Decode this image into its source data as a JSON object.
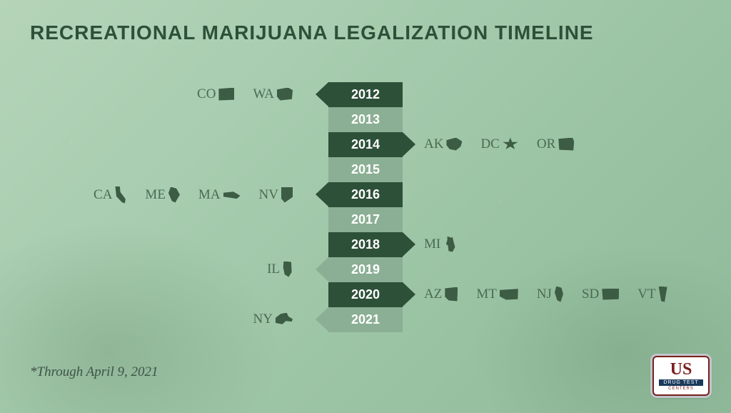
{
  "title": {
    "text": "RECREATIONAL MARIJUANA LEGALIZATION TIMELINE",
    "fontsize": 28
  },
  "footnote": {
    "text": "*Through April 9, 2021",
    "fontsize": 19
  },
  "logo": {
    "us": "US",
    "band": "DRUG TEST",
    "sub": "CENTERS"
  },
  "timeline": {
    "block_height": 35,
    "year_fontsize": 18,
    "colors": {
      "dark": "#2d5039",
      "light": "#8baf94",
      "text": "#ffffff",
      "state_text": "#4a6b52",
      "state_fill": "#3d5c44",
      "state_outline": "#ffffff"
    },
    "years": [
      {
        "year": "2012",
        "shade": "dark",
        "side": "left",
        "states": [
          {
            "abbr": "CO",
            "shape": "shape-co"
          },
          {
            "abbr": "WA",
            "shape": "shape-wa"
          }
        ]
      },
      {
        "year": "2013",
        "shade": "light",
        "side": "none",
        "states": []
      },
      {
        "year": "2014",
        "shade": "dark",
        "side": "right",
        "states": [
          {
            "abbr": "AK",
            "shape": "shape-ak"
          },
          {
            "abbr": "DC",
            "shape": "shape-dc"
          },
          {
            "abbr": "OR",
            "shape": "shape-or"
          }
        ]
      },
      {
        "year": "2015",
        "shade": "light",
        "side": "none",
        "states": []
      },
      {
        "year": "2016",
        "shade": "dark",
        "side": "left",
        "states": [
          {
            "abbr": "CA",
            "shape": "shape-ca"
          },
          {
            "abbr": "ME",
            "shape": "shape-me"
          },
          {
            "abbr": "MA",
            "shape": "shape-ma"
          },
          {
            "abbr": "NV",
            "shape": "shape-nv"
          }
        ]
      },
      {
        "year": "2017",
        "shade": "light",
        "side": "none",
        "states": []
      },
      {
        "year": "2018",
        "shade": "dark",
        "side": "right",
        "states": [
          {
            "abbr": "MI",
            "shape": "shape-mi"
          }
        ]
      },
      {
        "year": "2019",
        "shade": "light",
        "side": "left",
        "states": [
          {
            "abbr": "IL",
            "shape": "shape-il"
          }
        ]
      },
      {
        "year": "2020",
        "shade": "dark",
        "side": "right",
        "states": [
          {
            "abbr": "AZ",
            "shape": "shape-az"
          },
          {
            "abbr": "MT",
            "shape": "shape-mt"
          },
          {
            "abbr": "NJ",
            "shape": "shape-nj"
          },
          {
            "abbr": "SD",
            "shape": "shape-sd"
          },
          {
            "abbr": "VT",
            "shape": "shape-vt"
          }
        ]
      },
      {
        "year": "2021",
        "shade": "light",
        "side": "left",
        "states": [
          {
            "abbr": "NY",
            "shape": "shape-ny"
          }
        ]
      }
    ]
  }
}
